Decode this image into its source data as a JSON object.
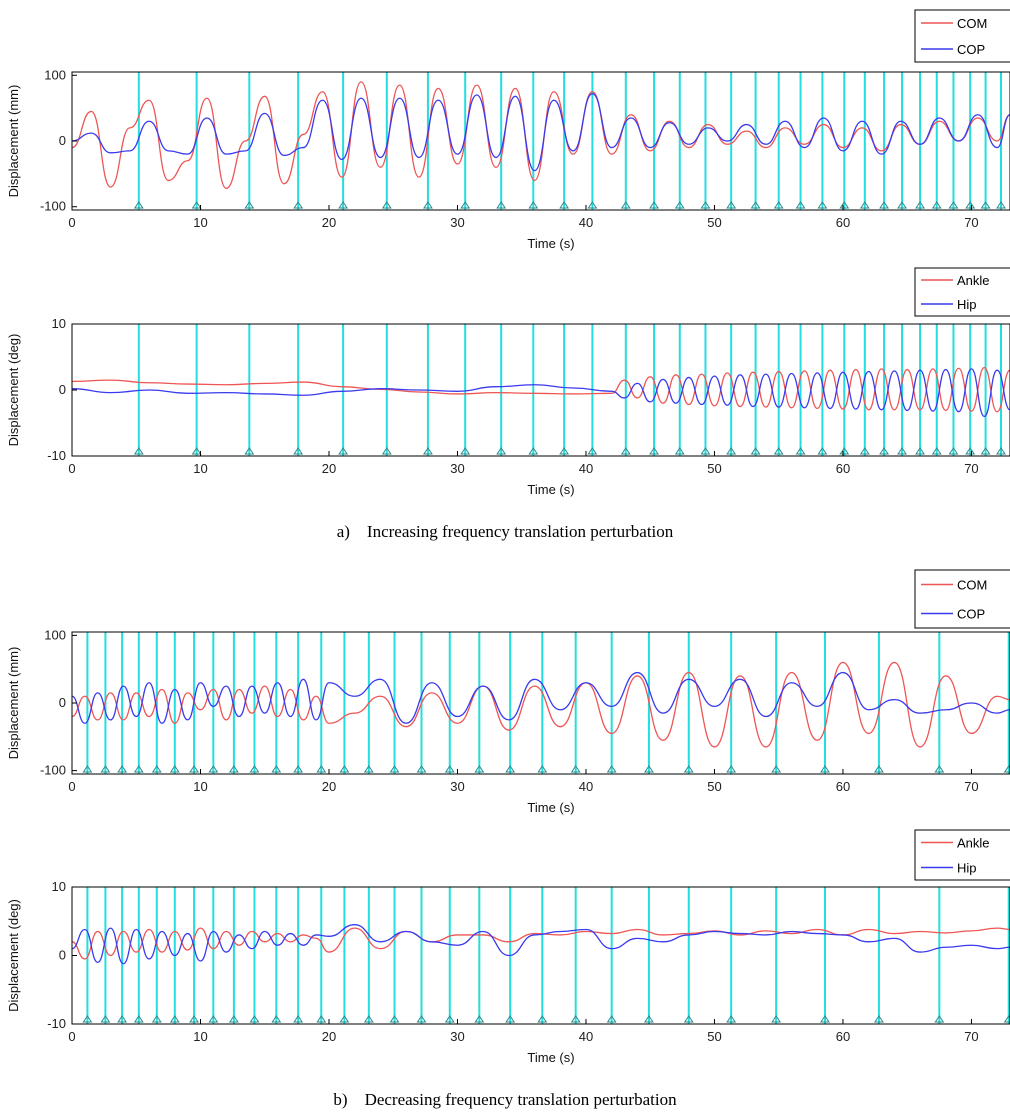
{
  "colors": {
    "red": "#ee5555",
    "blue": "#3a3aee",
    "cyan": "#22dede",
    "frame": "#000000"
  },
  "captions": {
    "a": "a)    Increasing frequency translation perturbation",
    "b": "b)    Decreasing frequency translation perturbation"
  },
  "chart_data": [
    {
      "type": "line",
      "panel": "a-top",
      "xlabel": "Time (s)",
      "ylabel": "Displacement (mm)",
      "xlim": [
        0,
        73
      ],
      "ylim": [
        -105,
        105
      ],
      "xticks": [
        0,
        10,
        20,
        30,
        40,
        50,
        60,
        70
      ],
      "yticks": [
        -100,
        0,
        100
      ],
      "grid": false,
      "legend": "top-right",
      "vlines": [
        5.2,
        9.7,
        13.8,
        17.6,
        21.1,
        24.5,
        27.7,
        30.6,
        33.4,
        35.9,
        38.3,
        40.5,
        43.1,
        45.3,
        47.3,
        49.3,
        51.3,
        53.2,
        55.0,
        56.7,
        58.4,
        60.1,
        61.7,
        63.2,
        64.6,
        66.0,
        67.3,
        68.6,
        69.9,
        71.1,
        72.3
      ],
      "series": [
        {
          "name": "COM",
          "color": "red",
          "x": [
            0,
            1.5,
            3,
            4.5,
            6,
            7.5,
            9,
            10.5,
            12,
            13.5,
            15,
            16.5,
            18,
            19.5,
            21,
            22.5,
            24,
            25.5,
            27,
            28.5,
            30,
            31.5,
            33,
            34.5,
            36,
            37.5,
            39,
            40.5,
            42,
            43.5,
            45,
            46.5,
            48,
            49.5,
            51,
            52.5,
            54,
            55.5,
            57,
            58.5,
            60,
            61.5,
            63,
            64.5,
            66,
            67.5,
            69,
            70.5,
            72,
            73
          ],
          "y": [
            -10,
            45,
            -70,
            20,
            62,
            -60,
            -30,
            65,
            -72,
            0,
            68,
            -65,
            10,
            75,
            -55,
            90,
            -40,
            85,
            -55,
            80,
            -35,
            85,
            -40,
            80,
            -60,
            75,
            -20,
            75,
            -20,
            40,
            -15,
            30,
            -10,
            25,
            -5,
            15,
            -10,
            20,
            -5,
            25,
            -10,
            20,
            -15,
            25,
            -5,
            30,
            0,
            35,
            0,
            40
          ]
        },
        {
          "name": "COP",
          "color": "blue",
          "x": [
            0,
            1.5,
            3,
            4.5,
            6,
            7.5,
            9,
            10.5,
            12,
            13.5,
            15,
            16.5,
            18,
            19.5,
            21,
            22.5,
            24,
            25.5,
            27,
            28.5,
            30,
            31.5,
            33,
            34.5,
            36,
            37.5,
            39,
            40.5,
            42,
            43.5,
            45,
            46.5,
            48,
            49.5,
            51,
            52.5,
            54,
            55.5,
            57,
            58.5,
            60,
            61.5,
            63,
            64.5,
            66,
            67.5,
            69,
            70.5,
            72,
            73
          ],
          "y": [
            0,
            12,
            -18,
            -15,
            30,
            -15,
            -20,
            35,
            -20,
            -15,
            42,
            -22,
            -10,
            62,
            -28,
            65,
            -25,
            65,
            -25,
            62,
            -20,
            70,
            -25,
            68,
            -45,
            62,
            -15,
            72,
            -10,
            35,
            -10,
            28,
            -5,
            20,
            0,
            25,
            -5,
            30,
            -10,
            35,
            -15,
            30,
            -20,
            30,
            -5,
            35,
            0,
            40,
            -10,
            40
          ]
        }
      ]
    },
    {
      "type": "line",
      "panel": "a-bottom",
      "xlabel": "Time (s)",
      "ylabel": "Displacement (deg)",
      "xlim": [
        0,
        73
      ],
      "ylim": [
        -10,
        10
      ],
      "xticks": [
        0,
        10,
        20,
        30,
        40,
        50,
        60,
        70
      ],
      "yticks": [
        -10,
        0,
        10
      ],
      "grid": false,
      "legend": "top-right",
      "vlines": [
        5.2,
        9.7,
        13.8,
        17.6,
        21.1,
        24.5,
        27.7,
        30.6,
        33.4,
        35.9,
        38.3,
        40.5,
        43.1,
        45.3,
        47.3,
        49.3,
        51.3,
        53.2,
        55.0,
        56.7,
        58.4,
        60.1,
        61.7,
        63.2,
        64.6,
        66.0,
        67.3,
        68.6,
        69.9,
        71.1,
        72.3
      ],
      "series": [
        {
          "name": "Ankle",
          "color": "red",
          "x": [
            0,
            3,
            6,
            9,
            12,
            15,
            18,
            21,
            24,
            27,
            30,
            33,
            36,
            39,
            42,
            43,
            44,
            45,
            46,
            47,
            48,
            49,
            50,
            51,
            52,
            53,
            54,
            55,
            56,
            57,
            58,
            59,
            60,
            61,
            62,
            63,
            64,
            65,
            66,
            67,
            68,
            69,
            70,
            71,
            72,
            73
          ],
          "y": [
            1.3,
            1.5,
            1.1,
            0.9,
            0.8,
            1.0,
            1.2,
            0.5,
            0.1,
            -0.3,
            -0.6,
            -0.4,
            -0.5,
            -0.6,
            -0.5,
            1.5,
            -1.2,
            2.0,
            -2.0,
            2.3,
            -2.2,
            2.4,
            -2.4,
            2.6,
            -2.5,
            2.7,
            -2.6,
            2.8,
            -2.7,
            2.9,
            -2.8,
            3.0,
            -2.9,
            3.1,
            -3.0,
            3.2,
            -3.0,
            3.1,
            -3.0,
            3.2,
            -3.1,
            3.3,
            -3.2,
            3.4,
            -3.3,
            3.0
          ]
        },
        {
          "name": "Hip",
          "color": "blue",
          "x": [
            0,
            3,
            6,
            9,
            12,
            15,
            18,
            21,
            24,
            27,
            30,
            33,
            36,
            39,
            42,
            43,
            44,
            45,
            46,
            47,
            48,
            49,
            50,
            51,
            52,
            53,
            54,
            55,
            56,
            57,
            58,
            59,
            60,
            61,
            62,
            63,
            64,
            65,
            66,
            67,
            68,
            69,
            70,
            71,
            72,
            73
          ],
          "y": [
            0.2,
            -0.4,
            0.0,
            -0.5,
            -0.4,
            -0.6,
            -0.8,
            -0.2,
            0.2,
            0.0,
            -0.2,
            0.5,
            0.8,
            0.3,
            -0.2,
            -1.2,
            1.0,
            -1.8,
            1.6,
            -2.0,
            1.9,
            -2.2,
            2.1,
            -2.3,
            2.3,
            -2.5,
            2.4,
            -2.6,
            2.5,
            -2.7,
            2.6,
            -2.8,
            2.7,
            -2.9,
            2.8,
            -3.0,
            2.9,
            -3.1,
            3.0,
            -3.2,
            3.1,
            -3.3,
            3.2,
            -4.0,
            3.0,
            -3.0
          ]
        }
      ]
    },
    {
      "type": "line",
      "panel": "b-top",
      "xlabel": "Time (s)",
      "ylabel": "Displacement (mm)",
      "xlim": [
        0,
        73
      ],
      "ylim": [
        -105,
        105
      ],
      "xticks": [
        0,
        10,
        20,
        30,
        40,
        50,
        60,
        70
      ],
      "yticks": [
        -100,
        0,
        100
      ],
      "grid": false,
      "legend": "top-right",
      "vlines": [
        1.2,
        2.6,
        3.9,
        5.2,
        6.6,
        8.0,
        9.5,
        11.0,
        12.6,
        14.2,
        15.9,
        17.6,
        19.4,
        21.2,
        23.1,
        25.1,
        27.2,
        29.4,
        31.7,
        34.1,
        36.6,
        39.2,
        42.0,
        44.9,
        48.0,
        51.3,
        54.8,
        58.6,
        62.8,
        67.5,
        72.9
      ],
      "series": [
        {
          "name": "COM",
          "color": "red",
          "x": [
            0,
            1,
            2,
            3,
            4,
            5,
            6,
            7,
            8,
            9,
            10,
            11,
            12,
            13,
            14,
            15,
            16,
            17,
            18,
            19,
            20,
            22,
            24,
            26,
            28,
            30,
            32,
            34,
            36,
            38,
            40,
            42,
            44,
            46,
            48,
            50,
            52,
            54,
            56,
            58,
            60,
            62,
            64,
            66,
            68,
            70,
            72,
            73
          ],
          "y": [
            -20,
            10,
            -25,
            15,
            -25,
            15,
            -20,
            20,
            -30,
            15,
            -10,
            20,
            -25,
            20,
            -15,
            25,
            -20,
            20,
            -25,
            10,
            -30,
            -15,
            10,
            -35,
            15,
            -30,
            25,
            -40,
            25,
            -35,
            30,
            -45,
            40,
            -55,
            45,
            -65,
            40,
            -65,
            45,
            -55,
            60,
            -45,
            60,
            -65,
            40,
            -45,
            10,
            5
          ]
        },
        {
          "name": "COP",
          "color": "blue",
          "x": [
            0,
            1,
            2,
            3,
            4,
            5,
            6,
            7,
            8,
            9,
            10,
            11,
            12,
            13,
            14,
            15,
            16,
            17,
            18,
            19,
            20,
            22,
            24,
            26,
            28,
            30,
            32,
            34,
            36,
            38,
            40,
            42,
            44,
            46,
            48,
            50,
            52,
            54,
            56,
            58,
            60,
            62,
            64,
            66,
            68,
            70,
            72,
            73
          ],
          "y": [
            10,
            -30,
            15,
            -25,
            25,
            -20,
            30,
            -30,
            20,
            -25,
            30,
            -5,
            25,
            -20,
            25,
            -15,
            30,
            -20,
            35,
            -25,
            30,
            10,
            35,
            -30,
            30,
            -20,
            25,
            -25,
            35,
            -10,
            30,
            -5,
            45,
            -15,
            35,
            -5,
            35,
            -20,
            30,
            -5,
            45,
            -10,
            5,
            -15,
            -10,
            0,
            -15,
            -10
          ]
        }
      ]
    },
    {
      "type": "line",
      "panel": "b-bottom",
      "xlabel": "Time (s)",
      "ylabel": "Displacement (deg)",
      "xlim": [
        0,
        73
      ],
      "ylim": [
        -10,
        10
      ],
      "xticks": [
        0,
        10,
        20,
        30,
        40,
        50,
        60,
        70
      ],
      "yticks": [
        -10,
        0,
        10
      ],
      "grid": false,
      "legend": "top-right",
      "vlines": [
        1.2,
        2.6,
        3.9,
        5.2,
        6.6,
        8.0,
        9.5,
        11.0,
        12.6,
        14.2,
        15.9,
        17.6,
        19.4,
        21.2,
        23.1,
        25.1,
        27.2,
        29.4,
        31.7,
        34.1,
        36.6,
        39.2,
        42.0,
        44.9,
        48.0,
        51.3,
        54.8,
        58.6,
        62.8,
        67.5,
        72.9
      ],
      "series": [
        {
          "name": "Ankle",
          "color": "red",
          "x": [
            0,
            1,
            2,
            3,
            4,
            5,
            6,
            7,
            8,
            9,
            10,
            11,
            12,
            13,
            14,
            15,
            16,
            17,
            18,
            19,
            20,
            22,
            24,
            26,
            28,
            30,
            32,
            34,
            36,
            38,
            40,
            42,
            44,
            46,
            48,
            50,
            52,
            54,
            56,
            58,
            60,
            62,
            64,
            66,
            68,
            70,
            72,
            73
          ],
          "y": [
            2.0,
            -0.5,
            3.5,
            0.0,
            3.5,
            0.5,
            3.8,
            0.5,
            3.5,
            0.8,
            4.0,
            1.0,
            3.5,
            1.5,
            3.5,
            2.0,
            3.2,
            2.0,
            3.0,
            2.5,
            0.5,
            4.0,
            1.0,
            3.5,
            2.0,
            3.0,
            3.0,
            2.0,
            3.2,
            3.0,
            3.5,
            3.2,
            3.8,
            3.0,
            3.2,
            3.6,
            3.0,
            3.6,
            3.2,
            3.8,
            3.0,
            3.8,
            3.2,
            3.5,
            3.3,
            3.6,
            4.0,
            3.8
          ]
        },
        {
          "name": "Hip",
          "color": "blue",
          "x": [
            0,
            1,
            2,
            3,
            4,
            5,
            6,
            7,
            8,
            9,
            10,
            11,
            12,
            13,
            14,
            15,
            16,
            17,
            18,
            19,
            20,
            22,
            24,
            26,
            28,
            30,
            32,
            34,
            36,
            38,
            40,
            42,
            44,
            46,
            48,
            50,
            52,
            54,
            56,
            58,
            60,
            62,
            64,
            66,
            68,
            70,
            72,
            73
          ],
          "y": [
            1.0,
            3.8,
            -1.0,
            4.0,
            -1.2,
            3.8,
            -0.5,
            3.5,
            0.0,
            3.2,
            -0.8,
            3.5,
            0.5,
            3.0,
            1.0,
            3.5,
            1.5,
            3.2,
            1.5,
            3.0,
            2.8,
            4.5,
            2.0,
            3.5,
            2.0,
            1.5,
            3.5,
            0.0,
            3.0,
            3.5,
            3.8,
            1.0,
            2.5,
            2.0,
            3.0,
            3.5,
            3.2,
            3.0,
            3.5,
            3.2,
            3.0,
            2.0,
            2.5,
            0.5,
            1.2,
            1.5,
            1.0,
            1.2
          ]
        }
      ]
    }
  ]
}
